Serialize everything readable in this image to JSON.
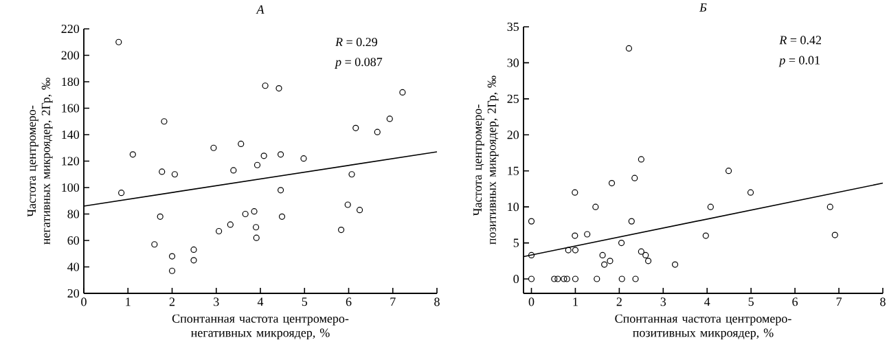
{
  "chart_data": [
    {
      "type": "scatter",
      "title": "А",
      "xlabel": "Спонтанная частота центромеро-негативных микроядер, %",
      "ylabel": "Частота центромеро-негативных микроядер, 2Гр, ‰",
      "annotations": [
        "*R* = 0.29",
        "*p* = 0.087"
      ],
      "xlim": [
        0,
        8
      ],
      "ylim": [
        20,
        220
      ],
      "xticks": [
        0,
        1,
        2,
        3,
        4,
        5,
        6,
        7,
        8
      ],
      "yticks": [
        20,
        40,
        60,
        80,
        100,
        120,
        140,
        160,
        180,
        200,
        220
      ],
      "series": [
        {
          "marker": "circle",
          "color": "#000000",
          "x": [
            0.79,
            1.82,
            1.11,
            2.94,
            3.56,
            1.77,
            2.06,
            3.39,
            3.93,
            0.85,
            1.73,
            3.66,
            3.86,
            3.9,
            3.91,
            3.32,
            3.06,
            1.6,
            2.0,
            2.0,
            2.49,
            2.49,
            4.11,
            4.42,
            7.22,
            6.93,
            6.16,
            6.65,
            4.08,
            4.46,
            4.98,
            6.07,
            4.46,
            5.98,
            6.25,
            4.49,
            5.83
          ],
          "values": [
            210,
            150,
            125,
            130,
            133,
            112,
            110,
            113,
            117,
            96,
            78,
            80,
            82,
            70,
            62,
            72,
            67,
            57,
            48,
            37,
            53,
            45,
            177,
            175,
            172,
            152,
            145,
            142,
            124,
            125,
            122,
            110,
            98,
            87,
            83,
            78,
            68
          ]
        },
        {
          "type": "line",
          "marker": "none",
          "color": "#000000",
          "x": [
            0,
            8
          ],
          "values": [
            86,
            127
          ]
        }
      ]
    },
    {
      "type": "scatter",
      "title": "Б",
      "xlabel": "Спонтанная частота центромеро-позитивных микроядер, %",
      "ylabel": "Частота центромеро-позитивных микроядер, 2Гр, ‰",
      "annotations": [
        "*R* = 0.42",
        "*p* = 0.01"
      ],
      "xlim": [
        -0.18,
        8
      ],
      "ylim": [
        -2,
        35
      ],
      "xticks": [
        0,
        1,
        2,
        3,
        4,
        5,
        6,
        7,
        8
      ],
      "yticks": [
        0,
        5,
        10,
        15,
        20,
        25,
        30,
        35
      ],
      "series": [
        {
          "marker": "circle",
          "color": "#000000",
          "x": [
            2.22,
            2.5,
            2.35,
            1.83,
            0.99,
            1.46,
            0,
            2.28,
            0.99,
            1.27,
            2.05,
            0,
            0.84,
            1.0,
            1.62,
            1.66,
            1.79,
            2.5,
            2.6,
            2.66,
            3.27,
            0,
            0.52,
            0.6,
            0.74,
            0.81,
            1.0,
            1.49,
            2.06,
            2.37,
            3.97,
            4.08,
            4.49,
            4.99,
            6.8,
            6.91
          ],
          "values": [
            32,
            16.6,
            14,
            13.3,
            12,
            10,
            8,
            8,
            6,
            6.2,
            5,
            3.3,
            4,
            4,
            3.3,
            2,
            2.5,
            3.8,
            3.3,
            2.5,
            2,
            0,
            0,
            0,
            0,
            0,
            0,
            0,
            0,
            0,
            6,
            10,
            15,
            12,
            10,
            6.1
          ]
        },
        {
          "type": "line",
          "marker": "none",
          "color": "#000000",
          "x": [
            -0.18,
            8
          ],
          "values": [
            3.1,
            13.3
          ]
        }
      ]
    }
  ]
}
